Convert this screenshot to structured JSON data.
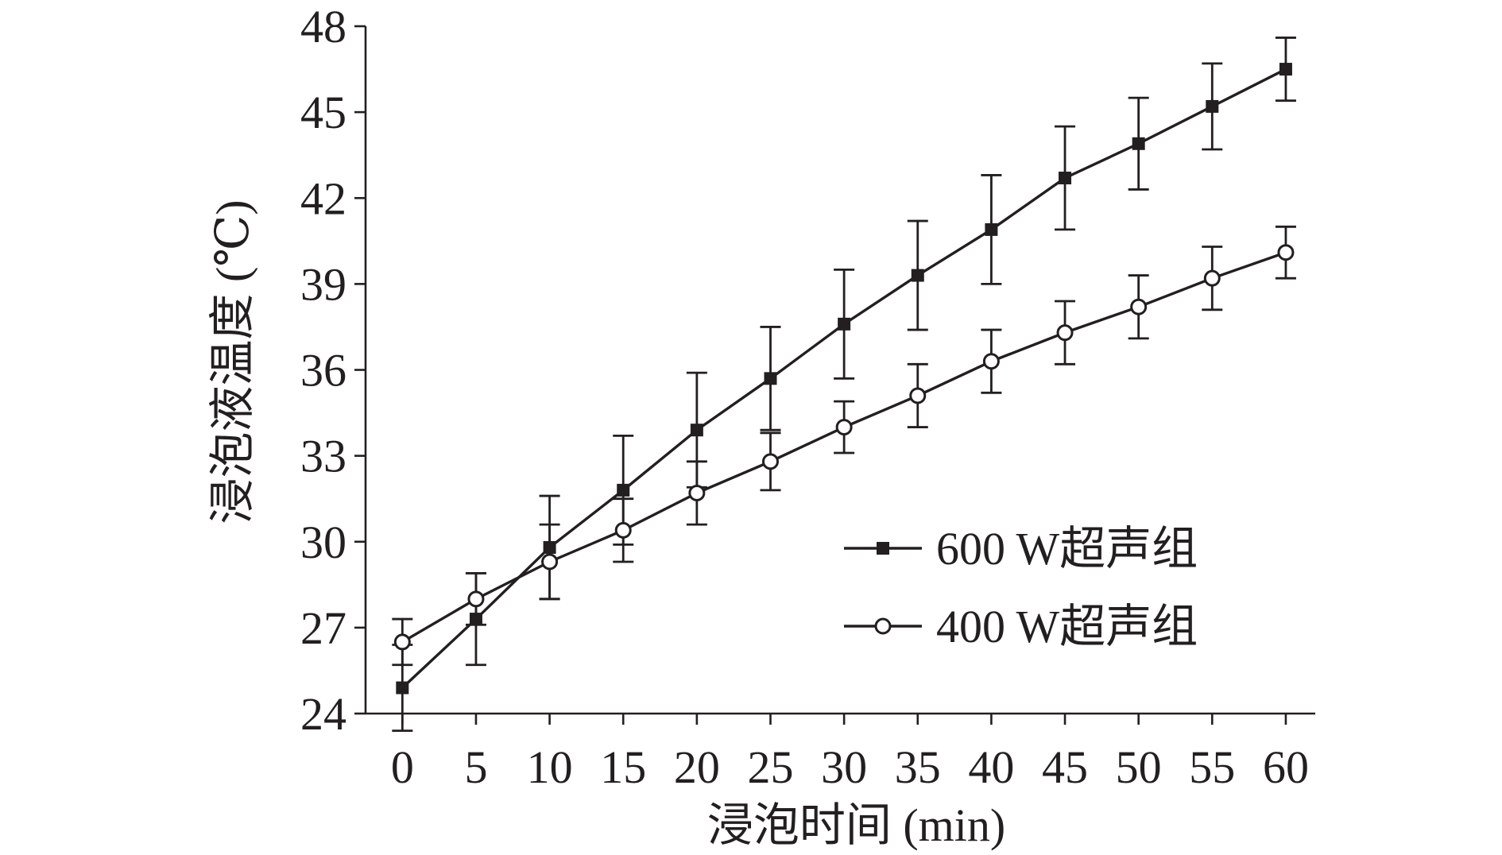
{
  "chart_data": {
    "type": "line",
    "xlabel": "浸泡时间 (min)",
    "ylabel": "浸泡液温度 (℃)",
    "x": [
      0,
      5,
      10,
      15,
      20,
      25,
      30,
      35,
      40,
      45,
      50,
      55,
      60
    ],
    "xlim": [
      -2.5,
      62
    ],
    "ylim": [
      24,
      48
    ],
    "yticks": [
      24,
      27,
      30,
      33,
      36,
      39,
      42,
      45,
      48
    ],
    "xticks": [
      0,
      5,
      10,
      15,
      20,
      25,
      30,
      35,
      40,
      45,
      50,
      55,
      60
    ],
    "grid": false,
    "legend_position": "center-right",
    "series": [
      {
        "name": "600 W超声组",
        "marker": "filled-square",
        "values": [
          24.9,
          27.3,
          29.8,
          31.8,
          33.9,
          35.7,
          37.6,
          39.3,
          40.9,
          42.7,
          43.9,
          45.2,
          46.5
        ],
        "error": [
          1.5,
          1.6,
          1.8,
          1.9,
          2.0,
          1.8,
          1.9,
          1.9,
          1.9,
          1.8,
          1.6,
          1.5,
          1.1
        ]
      },
      {
        "name": "400 W超声组",
        "marker": "open-circle",
        "values": [
          26.5,
          28.0,
          29.3,
          30.4,
          31.7,
          32.8,
          34.0,
          35.1,
          36.3,
          37.3,
          38.2,
          39.2,
          40.1
        ],
        "error": [
          0.8,
          0.9,
          1.3,
          1.1,
          1.1,
          1.0,
          0.9,
          1.1,
          1.1,
          1.1,
          1.1,
          1.1,
          0.9
        ]
      }
    ],
    "colors": {
      "ink": "#231f20",
      "background": "#ffffff"
    }
  }
}
